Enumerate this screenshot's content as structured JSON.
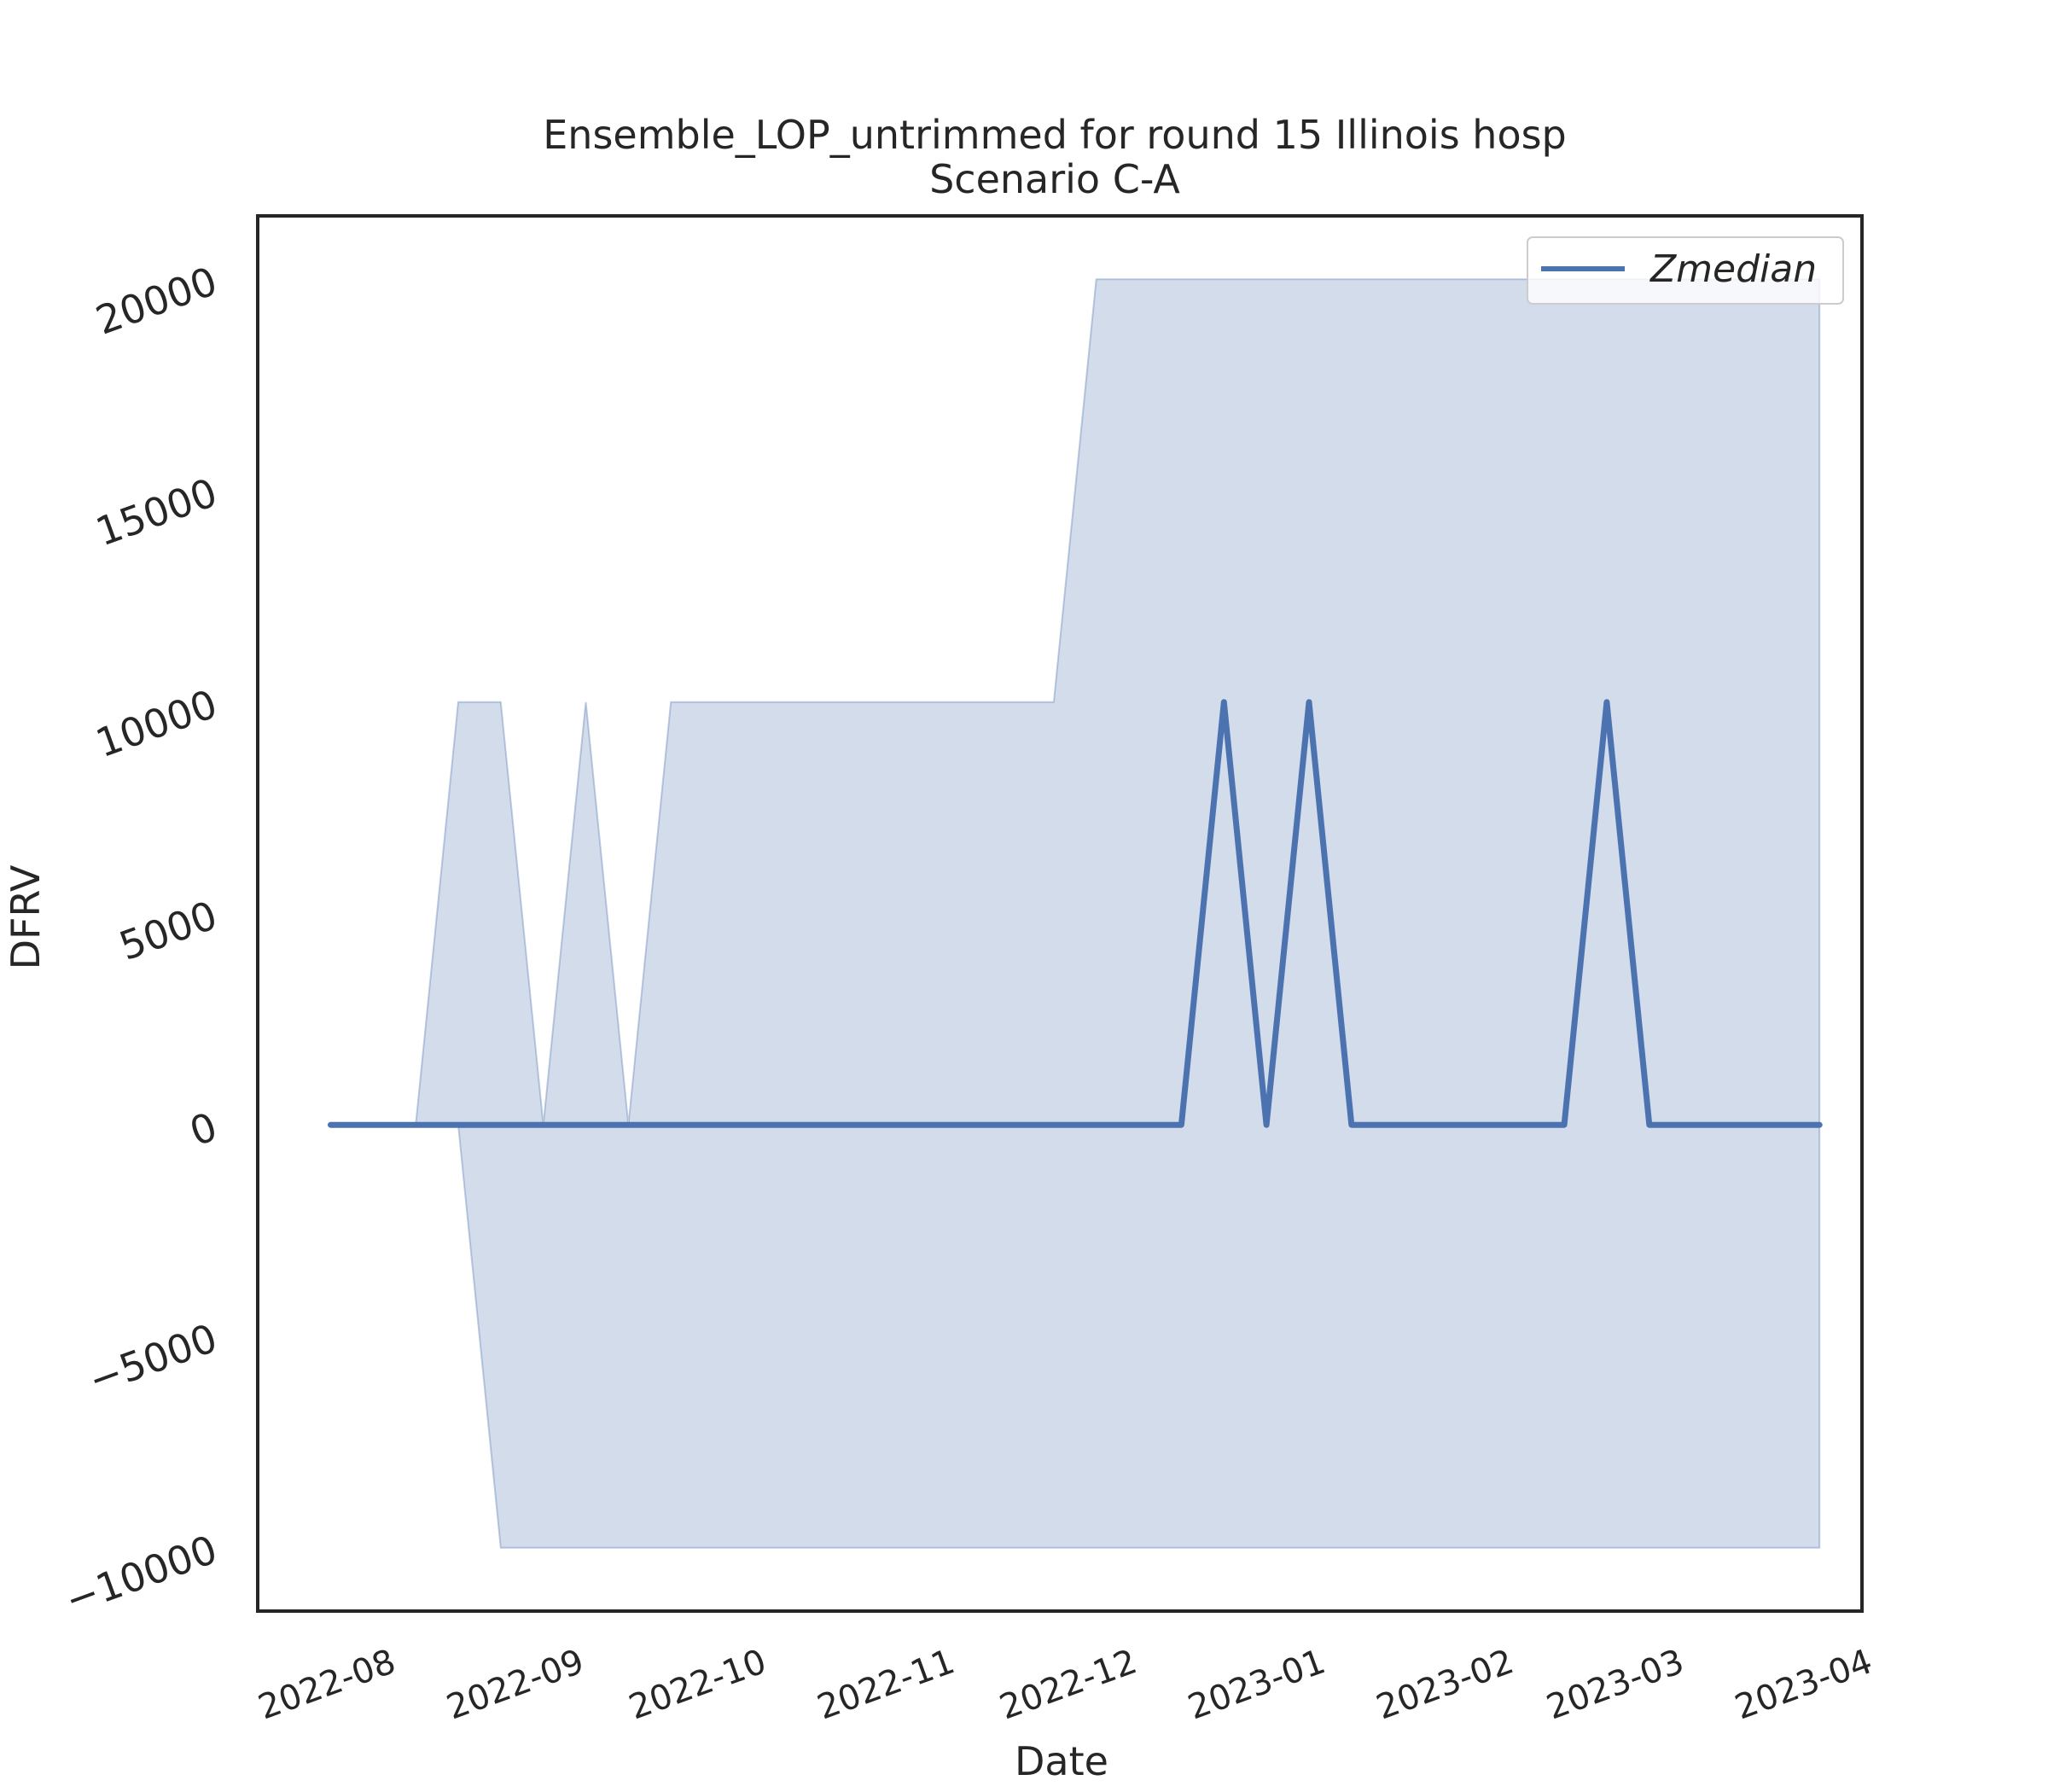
{
  "chart_data": {
    "type": "line",
    "title": "Ensemble_LOP_untrimmed for round 15 Illinois hosp",
    "subtitle": "Scenario C-A",
    "xlabel": "Date",
    "ylabel": "DFRV",
    "xlim": [
      "2022-07-14",
      "2023-04-04"
    ],
    "ylim": [
      -11500,
      21500
    ],
    "x_ticks": [
      "2022-08-01",
      "2022-09-01",
      "2022-10-01",
      "2022-11-01",
      "2022-12-01",
      "2023-01-01",
      "2023-02-01",
      "2023-03-01",
      "2023-04-01"
    ],
    "x_tick_labels": [
      "2022-08",
      "2022-09",
      "2022-10",
      "2022-11",
      "2022-12",
      "2023-01",
      "2023-02",
      "2023-03",
      "2023-04"
    ],
    "y_ticks": [
      -10000,
      -5000,
      0,
      5000,
      10000,
      15000,
      20000
    ],
    "y_tick_labels": [
      "−10000",
      "−5000",
      "0",
      "5000",
      "10000",
      "15000",
      "20000"
    ],
    "grid": false,
    "legend_position": "top-right",
    "series": [
      {
        "name": "Zmedian",
        "color": "#4c72b0",
        "x": [
          "2022-07-26",
          "2022-08-02",
          "2022-08-09",
          "2022-08-16",
          "2022-08-23",
          "2022-08-30",
          "2022-09-06",
          "2022-09-13",
          "2022-09-20",
          "2022-09-27",
          "2022-10-04",
          "2022-10-11",
          "2022-10-18",
          "2022-10-25",
          "2022-11-01",
          "2022-11-08",
          "2022-11-15",
          "2022-11-22",
          "2022-11-29",
          "2022-12-06",
          "2022-12-13",
          "2022-12-20",
          "2022-12-27",
          "2023-01-03",
          "2023-01-10",
          "2023-01-17",
          "2023-01-24",
          "2023-01-31",
          "2023-02-07",
          "2023-02-14",
          "2023-02-21",
          "2023-02-28",
          "2023-03-07",
          "2023-03-14",
          "2023-03-21",
          "2023-03-28"
        ],
        "y": [
          0,
          0,
          0,
          0,
          0,
          0,
          0,
          0,
          0,
          0,
          0,
          0,
          0,
          0,
          0,
          0,
          0,
          0,
          0,
          0,
          0,
          10000,
          0,
          10000,
          0,
          0,
          0,
          0,
          0,
          0,
          10000,
          0,
          0,
          0,
          0,
          0
        ]
      }
    ],
    "band": {
      "color": "#4c72b0",
      "opacity": 0.25,
      "x": [
        "2022-07-26",
        "2022-08-02",
        "2022-08-09",
        "2022-08-16",
        "2022-08-23",
        "2022-08-30",
        "2022-09-06",
        "2022-09-13",
        "2022-09-20",
        "2022-09-27",
        "2022-10-04",
        "2022-10-11",
        "2022-10-18",
        "2022-10-25",
        "2022-11-01",
        "2022-11-08",
        "2022-11-15",
        "2022-11-22",
        "2022-11-29",
        "2022-12-06",
        "2022-12-13",
        "2022-12-20",
        "2022-12-27",
        "2023-01-03",
        "2023-01-10",
        "2023-01-17",
        "2023-01-24",
        "2023-01-31",
        "2023-02-07",
        "2023-02-14",
        "2023-02-21",
        "2023-02-28",
        "2023-03-07",
        "2023-03-14",
        "2023-03-21",
        "2023-03-28"
      ],
      "upper": [
        0,
        0,
        0,
        10000,
        10000,
        0,
        10000,
        0,
        10000,
        10000,
        10000,
        10000,
        10000,
        10000,
        10000,
        10000,
        10000,
        10000,
        20000,
        20000,
        20000,
        20000,
        20000,
        20000,
        20000,
        20000,
        20000,
        20000,
        20000,
        20000,
        20000,
        20000,
        20000,
        20000,
        20000,
        20000
      ],
      "lower": [
        0,
        0,
        0,
        0,
        -10000,
        -10000,
        -10000,
        -10000,
        -10000,
        -10000,
        -10000,
        -10000,
        -10000,
        -10000,
        -10000,
        -10000,
        -10000,
        -10000,
        -10000,
        -10000,
        -10000,
        -10000,
        -10000,
        -10000,
        -10000,
        -10000,
        -10000,
        -10000,
        -10000,
        -10000,
        -10000,
        -10000,
        -10000,
        -10000,
        -10000,
        -10000
      ]
    }
  }
}
